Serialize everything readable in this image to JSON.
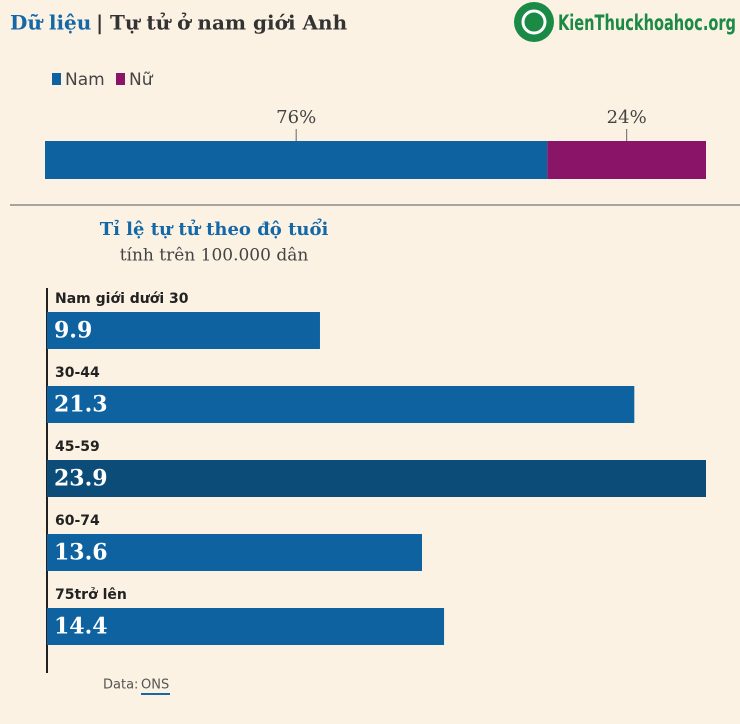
{
  "header": {
    "label": "Dữ liệu",
    "separator": "|",
    "title": "Tự tử ở nam giới Anh",
    "watermark": "KienThuckhoahoc.org"
  },
  "chart_data": [
    {
      "type": "stacked_bar",
      "xlim": [
        0,
        100
      ],
      "series": [
        {
          "name": "Nam",
          "color": "#0e62a0",
          "values": [
            76
          ],
          "value_labels": [
            "76%"
          ]
        },
        {
          "name": "Nữ",
          "color": "#8a1467",
          "values": [
            24
          ],
          "value_labels": [
            "24%"
          ]
        }
      ]
    },
    {
      "type": "bar",
      "orientation": "horizontal",
      "title": "Tỉ lệ tự tử theo độ tuổi",
      "subtitle": "tính trên 100.000 dân",
      "categories": [
        "Nam giới dưới 30",
        "30-44",
        "45-59",
        "60-74",
        "75trở lên"
      ],
      "values": [
        9.9,
        21.3,
        23.9,
        13.6,
        14.4
      ],
      "colors": [
        "#0e62a0",
        "#0e62a0",
        "#0b4d78",
        "#0e62a0",
        "#0e62a0"
      ],
      "xlim": [
        0,
        23.9
      ]
    }
  ],
  "source": {
    "label": "Data:",
    "name": "ONS"
  }
}
